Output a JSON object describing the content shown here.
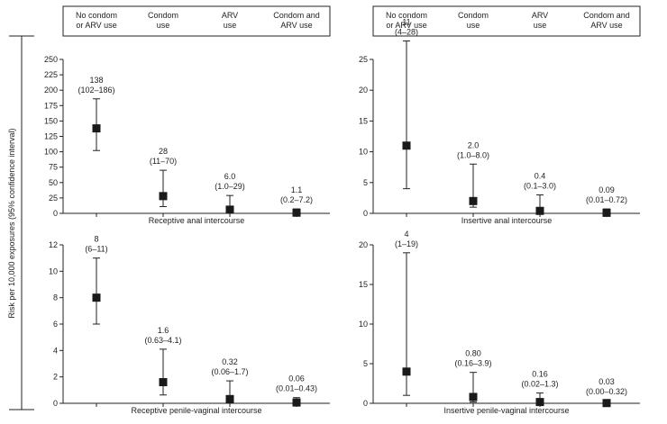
{
  "ylabel": "Risk per 10,000 exposures (95% confidence interval)",
  "groups": [
    "No condom\nor ARV use",
    "Condom\nuse",
    "ARV\nuse",
    "Condom and\nARV use"
  ],
  "chart_data": [
    {
      "type": "errorbar",
      "xlabel": "Receptive anal intercourse",
      "ylim": [
        0,
        250
      ],
      "yticks": [
        0,
        25,
        50,
        75,
        100,
        125,
        150,
        175,
        200,
        225,
        250
      ],
      "categories": [
        "No condom or ARV use",
        "Condom use",
        "ARV use",
        "Condom and ARV use"
      ],
      "values": [
        138,
        28,
        6.0,
        1.1
      ],
      "lower": [
        102,
        11,
        1.0,
        0.2
      ],
      "upper": [
        186,
        70,
        29,
        7.2
      ],
      "labels": [
        "138",
        "28",
        "6.0",
        "1.1"
      ],
      "ci_labels": [
        "(102–186)",
        "(11–70)",
        "(1.0–29)",
        "(0.2–7.2)"
      ]
    },
    {
      "type": "errorbar",
      "xlabel": "Insertive anal intercourse",
      "ylim": [
        0,
        25
      ],
      "yticks": [
        0,
        5,
        10,
        15,
        20,
        25
      ],
      "categories": [
        "No condom or ARV use",
        "Condom use",
        "ARV use",
        "Condom and ARV use"
      ],
      "values": [
        11,
        2.0,
        0.4,
        0.09
      ],
      "lower": [
        4,
        1.0,
        0.1,
        0.01
      ],
      "upper": [
        28,
        8.0,
        3.0,
        0.72
      ],
      "labels": [
        "11",
        "2.0",
        "0.4",
        "0.09"
      ],
      "ci_labels": [
        "(4–28)",
        "(1.0–8.0)",
        "(0.1–3.0)",
        "(0.01–0.72)"
      ]
    },
    {
      "type": "errorbar",
      "xlabel": "Receptive penile-vaginal intercourse",
      "ylim": [
        0,
        12
      ],
      "yticks": [
        0,
        2,
        4,
        6,
        8,
        10,
        12
      ],
      "categories": [
        "No condom or ARV use",
        "Condom use",
        "ARV use",
        "Condom and ARV use"
      ],
      "values": [
        8,
        1.6,
        0.32,
        0.06
      ],
      "lower": [
        6,
        0.63,
        0.06,
        0.01
      ],
      "upper": [
        11,
        4.1,
        1.7,
        0.43
      ],
      "labels": [
        "8",
        "1.6",
        "0.32",
        "0.06"
      ],
      "ci_labels": [
        "(6–11)",
        "(0.63–4.1)",
        "(0.06–1.7)",
        "(0.01–0.43)"
      ]
    },
    {
      "type": "errorbar",
      "xlabel": "Insertive penile-vaginal intercourse",
      "ylim": [
        0,
        20
      ],
      "yticks": [
        0,
        5,
        10,
        15,
        20
      ],
      "categories": [
        "No condom or ARV use",
        "Condom use",
        "ARV use",
        "Condom and ARV use"
      ],
      "values": [
        4,
        0.8,
        0.16,
        0.03
      ],
      "lower": [
        1,
        0.16,
        0.02,
        0.0
      ],
      "upper": [
        19,
        3.9,
        1.3,
        0.32
      ],
      "labels": [
        "4",
        "0.80",
        "0.16",
        "0.03"
      ],
      "ci_labels": [
        "(1–19)",
        "(0.16–3.9)",
        "(0.02–1.3)",
        "(0.00–0.32)"
      ]
    }
  ]
}
